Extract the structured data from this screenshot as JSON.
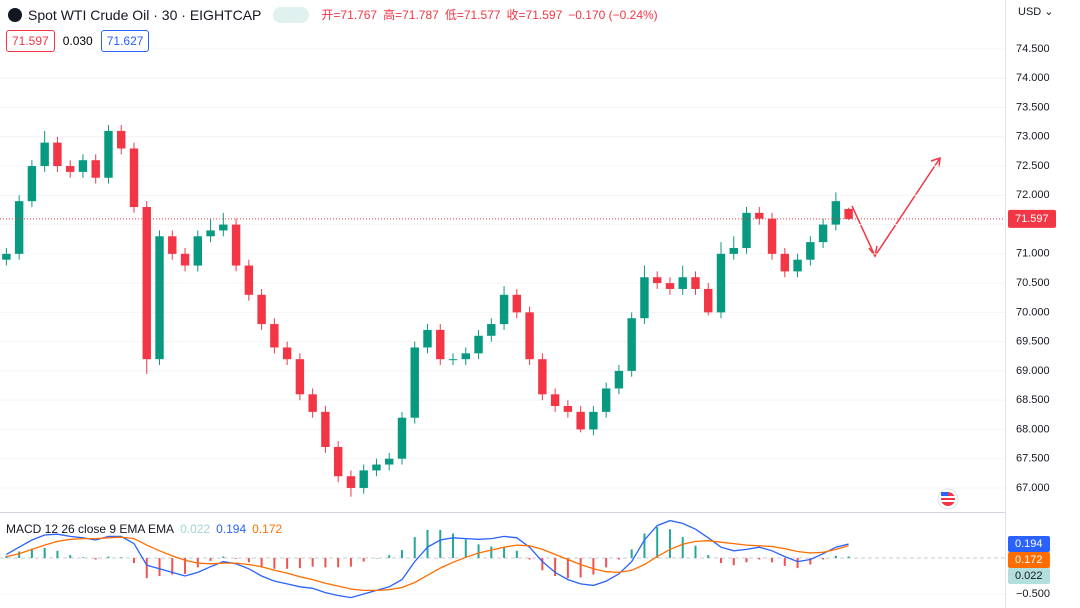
{
  "chart_data": [
    {
      "type": "candlestick",
      "title": "Spot WTI Crude Oil · 30 · EIGHTCAP",
      "ohlc_labels": [
        "开=71.767",
        "高=71.787",
        "低=71.577",
        "收=71.597"
      ],
      "change": "−0.170 (−0.24%)",
      "quote": [
        "71.597",
        "0.030",
        "71.627"
      ],
      "currency": "USD",
      "last_price": 71.597,
      "up_color": "#089981",
      "down_color": "#f23645",
      "grid": true,
      "ylim": [
        66.589,
        75.337
      ],
      "yticks": [
        {
          "value": 67,
          "label": "67.000"
        },
        {
          "value": 67.5,
          "label": "67.500"
        },
        {
          "value": 68,
          "label": "68.000"
        },
        {
          "value": 68.5,
          "label": "68.500"
        },
        {
          "value": 69,
          "label": "69.000"
        },
        {
          "value": 69.5,
          "label": "69.500"
        },
        {
          "value": 70,
          "label": "70.000"
        },
        {
          "value": 70.5,
          "label": "70.500"
        },
        {
          "value": 71,
          "label": "71.000"
        },
        {
          "value": 71.5,
          "label": "71.500"
        },
        {
          "value": 72,
          "label": "72.000"
        },
        {
          "value": 72.5,
          "label": "72.500"
        },
        {
          "value": 73,
          "label": "73.000"
        },
        {
          "value": 73.5,
          "label": "73.500"
        },
        {
          "value": 74,
          "label": "74.000"
        },
        {
          "value": 74.5,
          "label": "74.500"
        }
      ],
      "open": [
        70.9,
        71.0,
        71.9,
        72.5,
        72.9,
        72.5,
        72.4,
        72.6,
        72.3,
        73.1,
        72.8,
        71.8,
        69.2,
        71.3,
        71.0,
        70.8,
        71.3,
        71.4,
        71.5,
        70.8,
        70.3,
        69.8,
        69.4,
        69.2,
        68.6,
        68.3,
        67.7,
        67.2,
        67.0,
        67.3,
        67.4,
        67.5,
        68.2,
        69.4,
        69.7,
        69.2,
        69.2,
        69.3,
        69.6,
        69.8,
        70.3,
        70.0,
        69.2,
        68.6,
        68.4,
        68.3,
        68.0,
        68.3,
        68.7,
        69.0,
        69.9,
        70.6,
        70.5,
        70.4,
        70.6,
        70.4,
        70.0,
        71.0,
        71.1,
        71.7,
        71.6,
        71.0,
        70.7,
        70.9,
        71.2,
        71.5,
        71.767
      ],
      "high": [
        71.1,
        72.0,
        72.6,
        73.1,
        73.0,
        72.6,
        72.7,
        72.7,
        73.2,
        73.2,
        72.9,
        71.9,
        71.4,
        71.4,
        71.1,
        71.4,
        71.6,
        71.7,
        71.6,
        70.9,
        70.4,
        69.9,
        69.5,
        69.3,
        68.7,
        68.4,
        67.8,
        67.3,
        67.4,
        67.5,
        67.6,
        68.3,
        69.5,
        69.8,
        69.8,
        69.3,
        69.4,
        69.7,
        69.9,
        70.45,
        70.4,
        70.1,
        69.3,
        68.7,
        68.5,
        68.4,
        68.4,
        68.8,
        69.1,
        70.0,
        70.8,
        70.7,
        70.6,
        70.8,
        70.7,
        70.5,
        71.2,
        71.3,
        71.8,
        71.8,
        71.7,
        71.1,
        71.0,
        71.3,
        71.6,
        72.05,
        71.787
      ],
      "low": [
        70.8,
        70.9,
        71.8,
        72.4,
        72.4,
        72.3,
        72.3,
        72.2,
        72.2,
        72.7,
        71.7,
        68.95,
        69.1,
        70.9,
        70.7,
        70.7,
        71.2,
        71.3,
        70.7,
        70.2,
        69.7,
        69.3,
        69.1,
        68.5,
        68.2,
        67.6,
        67.1,
        66.85,
        66.9,
        67.2,
        67.3,
        67.4,
        68.1,
        69.3,
        69.1,
        69.1,
        69.1,
        69.2,
        69.5,
        69.7,
        69.9,
        69.1,
        68.5,
        68.3,
        68.2,
        67.95,
        67.9,
        68.2,
        68.6,
        68.9,
        69.8,
        70.4,
        70.3,
        70.3,
        70.3,
        69.95,
        69.9,
        70.9,
        71.0,
        71.5,
        70.9,
        70.6,
        70.6,
        70.8,
        71.1,
        71.4,
        71.577
      ],
      "close": [
        71.0,
        71.9,
        72.5,
        72.9,
        72.5,
        72.4,
        72.6,
        72.3,
        73.1,
        72.8,
        71.8,
        69.2,
        71.3,
        71.0,
        70.8,
        71.3,
        71.4,
        71.5,
        70.8,
        70.3,
        69.8,
        69.4,
        69.2,
        68.6,
        68.3,
        67.7,
        67.2,
        67.0,
        67.3,
        67.4,
        67.5,
        68.2,
        69.4,
        69.7,
        69.2,
        69.2,
        69.3,
        69.6,
        69.8,
        70.3,
        70.0,
        69.2,
        68.6,
        68.4,
        68.3,
        68.0,
        68.3,
        68.7,
        69.0,
        69.9,
        70.6,
        70.5,
        70.4,
        70.6,
        70.4,
        70.0,
        71.0,
        71.1,
        71.7,
        71.6,
        71.0,
        70.7,
        70.9,
        71.2,
        71.5,
        71.9,
        71.597
      ]
    },
    {
      "type": "macd",
      "title": "MACD 12 26 close 9 EMA EMA",
      "ylim": [
        -0.694,
        0.625
      ],
      "yticks": [
        {
          "value": -0.5,
          "label": "−0.500"
        }
      ],
      "histogram": {
        "color": "#26a69a",
        "negative_color": "#ef5350",
        "legend_color": "#9fd6d2",
        "values": [
          0.03,
          0.09,
          0.13,
          0.14,
          0.1,
          0.04,
          0.01,
          -0.02,
          0.02,
          0.01,
          -0.07,
          -0.28,
          -0.25,
          -0.23,
          -0.22,
          -0.13,
          -0.04,
          0.02,
          -0.01,
          -0.06,
          -0.13,
          -0.15,
          -0.15,
          -0.14,
          -0.12,
          -0.13,
          -0.13,
          -0.12,
          -0.05,
          0.0,
          0.04,
          0.11,
          0.29,
          0.39,
          0.39,
          0.34,
          0.26,
          0.19,
          0.16,
          0.15,
          0.1,
          -0.02,
          -0.17,
          -0.25,
          -0.28,
          -0.27,
          -0.23,
          -0.13,
          -0.02,
          0.12,
          0.34,
          0.43,
          0.4,
          0.29,
          0.17,
          0.04,
          -0.07,
          -0.1,
          -0.06,
          -0.02,
          -0.06,
          -0.11,
          -0.14,
          -0.09,
          -0.02,
          0.03,
          0.022
        ]
      },
      "macd": {
        "color": "#2962ff",
        "values": [
          0.05,
          0.15,
          0.25,
          0.32,
          0.33,
          0.3,
          0.28,
          0.25,
          0.3,
          0.3,
          0.2,
          -0.1,
          -0.15,
          -0.2,
          -0.25,
          -0.2,
          -0.12,
          -0.05,
          -0.08,
          -0.15,
          -0.25,
          -0.32,
          -0.36,
          -0.4,
          -0.42,
          -0.48,
          -0.52,
          -0.55,
          -0.5,
          -0.45,
          -0.4,
          -0.3,
          -0.05,
          0.15,
          0.25,
          0.28,
          0.27,
          0.26,
          0.27,
          0.3,
          0.28,
          0.15,
          -0.05,
          -0.2,
          -0.3,
          -0.36,
          -0.38,
          -0.32,
          -0.22,
          -0.05,
          0.25,
          0.45,
          0.52,
          0.48,
          0.4,
          0.28,
          0.15,
          0.1,
          0.12,
          0.15,
          0.1,
          0.02,
          -0.05,
          -0.02,
          0.06,
          0.15,
          0.194
        ]
      },
      "signal": {
        "color": "#ff6d00",
        "values": [
          0.02,
          0.06,
          0.12,
          0.18,
          0.23,
          0.26,
          0.27,
          0.27,
          0.28,
          0.29,
          0.27,
          0.18,
          0.1,
          0.03,
          -0.03,
          -0.07,
          -0.08,
          -0.07,
          -0.07,
          -0.09,
          -0.12,
          -0.17,
          -0.21,
          -0.26,
          -0.3,
          -0.35,
          -0.39,
          -0.43,
          -0.45,
          -0.45,
          -0.44,
          -0.41,
          -0.34,
          -0.24,
          -0.14,
          -0.06,
          0.01,
          0.07,
          0.11,
          0.15,
          0.18,
          0.17,
          0.12,
          0.05,
          -0.02,
          -0.09,
          -0.15,
          -0.19,
          -0.2,
          -0.17,
          -0.09,
          0.02,
          0.12,
          0.19,
          0.23,
          0.24,
          0.22,
          0.2,
          0.18,
          0.17,
          0.16,
          0.13,
          0.09,
          0.07,
          0.08,
          0.12,
          0.172
        ]
      }
    }
  ]
}
